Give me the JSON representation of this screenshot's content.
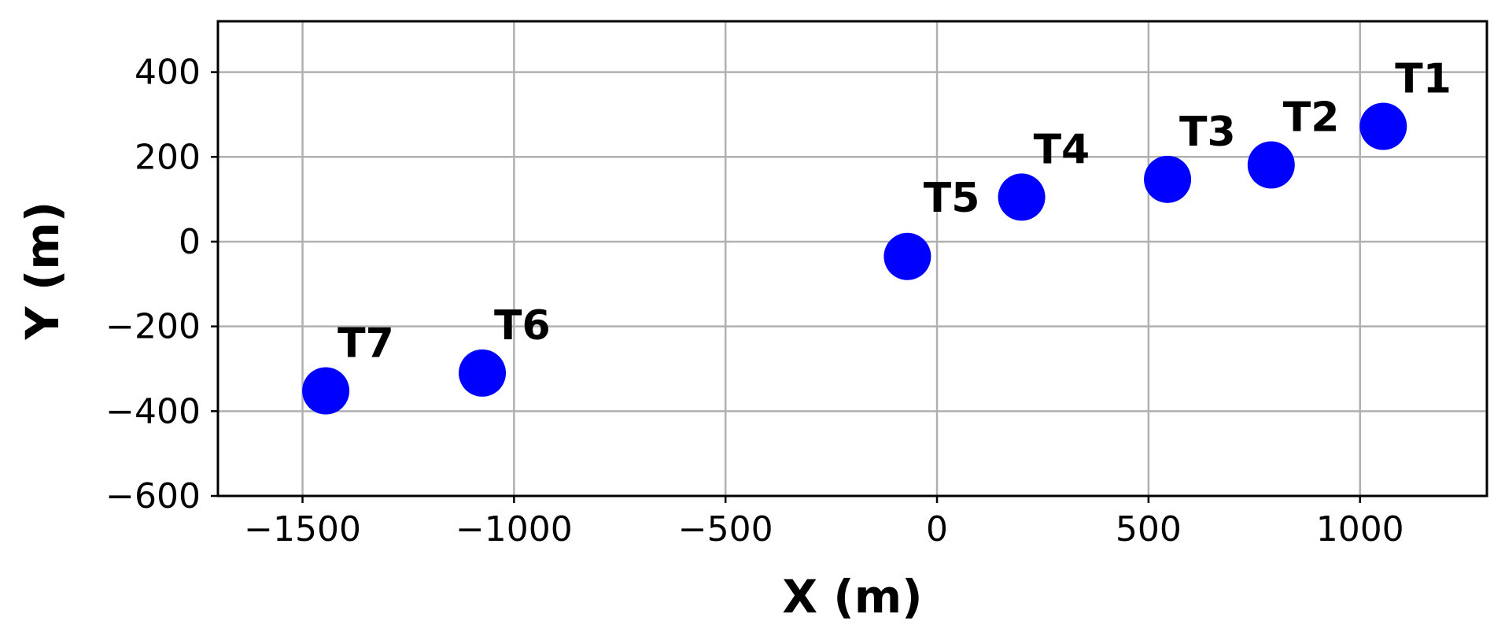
{
  "chart_data": {
    "type": "scatter",
    "title": "",
    "xlabel": "X (m)",
    "ylabel": "Y (m)",
    "xlim": [
      -1700,
      1300
    ],
    "ylim": [
      -600,
      520
    ],
    "xticks": [
      -1500,
      -1000,
      -500,
      0,
      500,
      1000
    ],
    "xtick_labels": [
      "−1500",
      "−1000",
      "−500",
      "0",
      "500",
      "1000"
    ],
    "yticks": [
      -600,
      -400,
      -200,
      0,
      200,
      400
    ],
    "ytick_labels": [
      "−600",
      "−400",
      "−200",
      "0",
      "200",
      "400"
    ],
    "grid": true,
    "marker_color": "#0000ff",
    "points": [
      {
        "label": "T1",
        "x": 1055,
        "y": 272
      },
      {
        "label": "T2",
        "x": 790,
        "y": 181
      },
      {
        "label": "T3",
        "x": 545,
        "y": 147
      },
      {
        "label": "T4",
        "x": 200,
        "y": 105
      },
      {
        "label": "T5",
        "x": -70,
        "y": -35
      },
      {
        "label": "T6",
        "x": -1075,
        "y": -310
      },
      {
        "label": "T7",
        "x": -1445,
        "y": -352
      }
    ]
  }
}
